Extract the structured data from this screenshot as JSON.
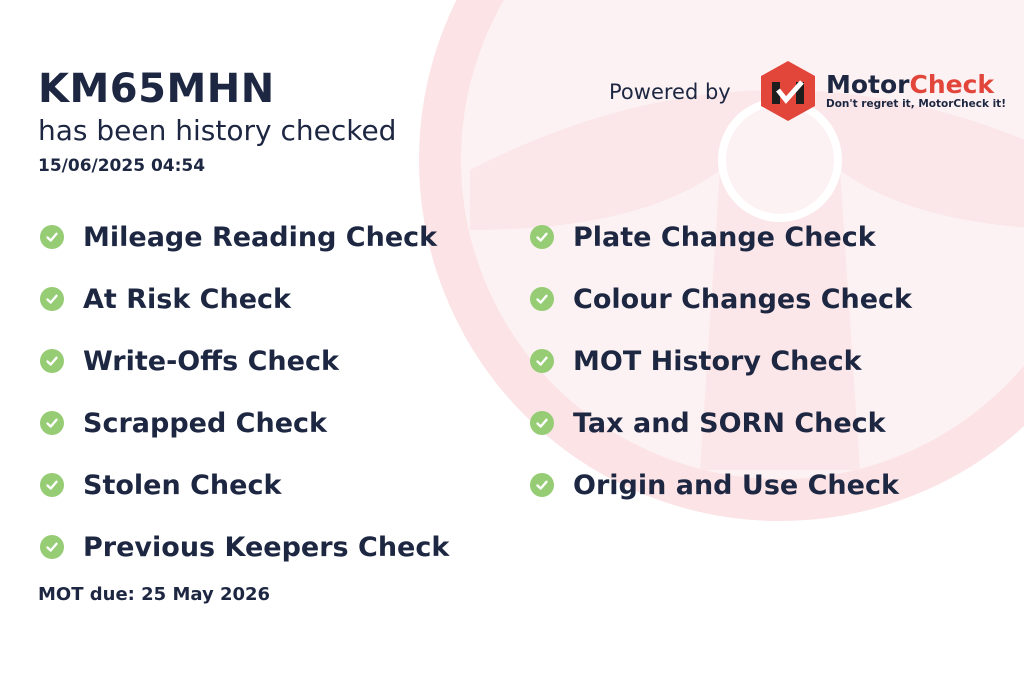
{
  "vehicle": {
    "plate": "KM65MHN",
    "status": "has been history checked",
    "timestamp": "15/06/2025 04:54"
  },
  "branding": {
    "powered_by": "Powered by",
    "brand_part1": "Motor",
    "brand_part2": "Check",
    "tagline": "Don't regret it, MotorCheck it!",
    "brand_color": "#e2463b"
  },
  "checks_left": [
    {
      "label": "Mileage Reading Check"
    },
    {
      "label": "At Risk Check"
    },
    {
      "label": "Write-Offs Check"
    },
    {
      "label": "Scrapped Check"
    },
    {
      "label": "Stolen Check"
    },
    {
      "label": "Previous Keepers Check"
    }
  ],
  "checks_right": [
    {
      "label": "Plate Change Check"
    },
    {
      "label": "Colour Changes Check"
    },
    {
      "label": "MOT History Check"
    },
    {
      "label": "Tax and SORN Check"
    },
    {
      "label": "Origin and Use Check"
    }
  ],
  "check_icon": "check-circle-icon",
  "check_color": "#95cc74",
  "mot_due": "MOT due: 25 May 2026"
}
